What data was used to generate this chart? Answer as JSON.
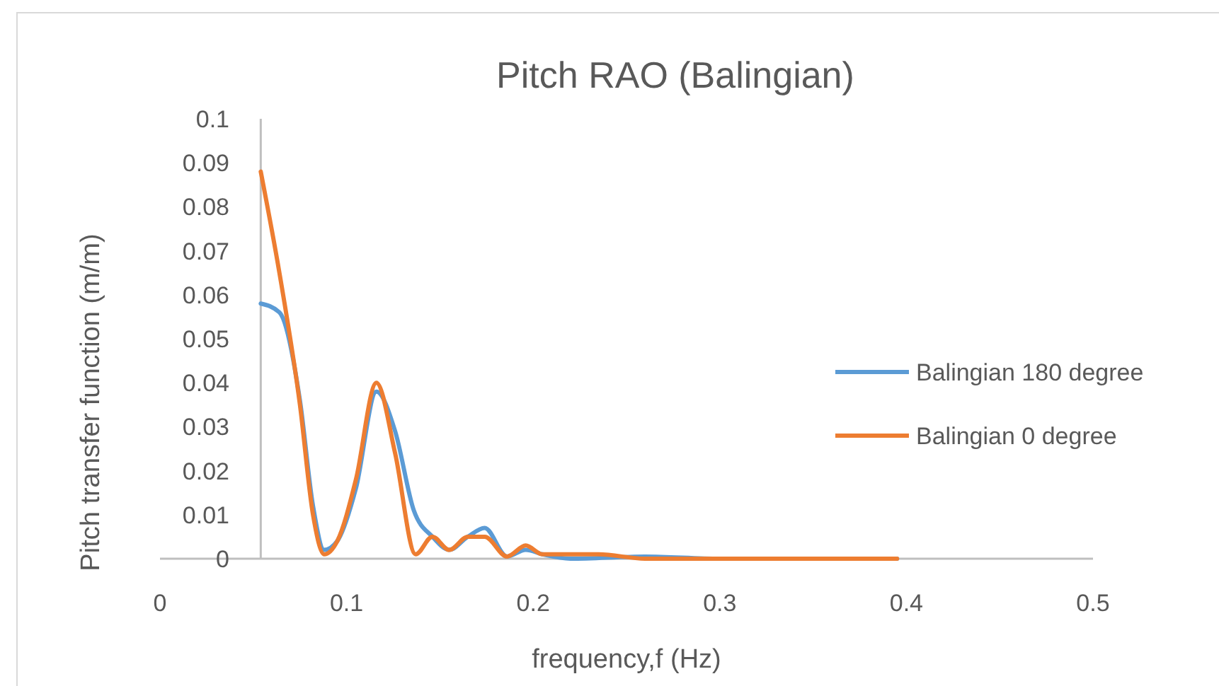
{
  "chart_data": {
    "type": "line",
    "title": "Pitch RAO (Balingian)",
    "xlabel": "frequency,f (Hz)",
    "ylabel": "Pitch transfer function (m/m)",
    "xlim": [
      0,
      0.5
    ],
    "xticks": [
      0,
      0.1,
      0.2,
      0.3,
      0.4,
      0.5
    ],
    "ylim": [
      0,
      0.1
    ],
    "yticks": [
      0,
      0.01,
      0.02,
      0.03,
      0.04,
      0.05,
      0.06,
      0.07,
      0.08,
      0.09,
      0.1
    ],
    "grid": false,
    "legend": "right",
    "marker": "none",
    "line_style": "solid",
    "series": [
      {
        "name": "Balingian 180 degree",
        "color": "#5b9bd5",
        "x": [
          0.054,
          0.064,
          0.075,
          0.082,
          0.088,
          0.095,
          0.105,
          0.116,
          0.126,
          0.136,
          0.146,
          0.155,
          0.165,
          0.174,
          0.186,
          0.196,
          0.205,
          0.22,
          0.26,
          0.3,
          0.35,
          0.395
        ],
        "values": [
          0.058,
          0.056,
          0.036,
          0.012,
          0.002,
          0.004,
          0.016,
          0.038,
          0.029,
          0.011,
          0.005,
          0.002,
          0.005,
          0.007,
          0.0005,
          0.002,
          0.001,
          0,
          0.0005,
          0,
          0,
          0
        ]
      },
      {
        "name": "Balingian 0 degree",
        "color": "#ed7d31",
        "x": [
          0.054,
          0.064,
          0.075,
          0.082,
          0.088,
          0.095,
          0.105,
          0.116,
          0.126,
          0.137,
          0.146,
          0.155,
          0.165,
          0.174,
          0.186,
          0.196,
          0.205,
          0.235,
          0.26,
          0.3,
          0.35,
          0.395
        ],
        "values": [
          0.088,
          0.065,
          0.035,
          0.01,
          0.001,
          0.004,
          0.018,
          0.04,
          0.024,
          0.001,
          0.005,
          0.002,
          0.005,
          0.005,
          0.0005,
          0.003,
          0.001,
          0.001,
          0,
          0,
          0,
          0
        ]
      }
    ]
  }
}
